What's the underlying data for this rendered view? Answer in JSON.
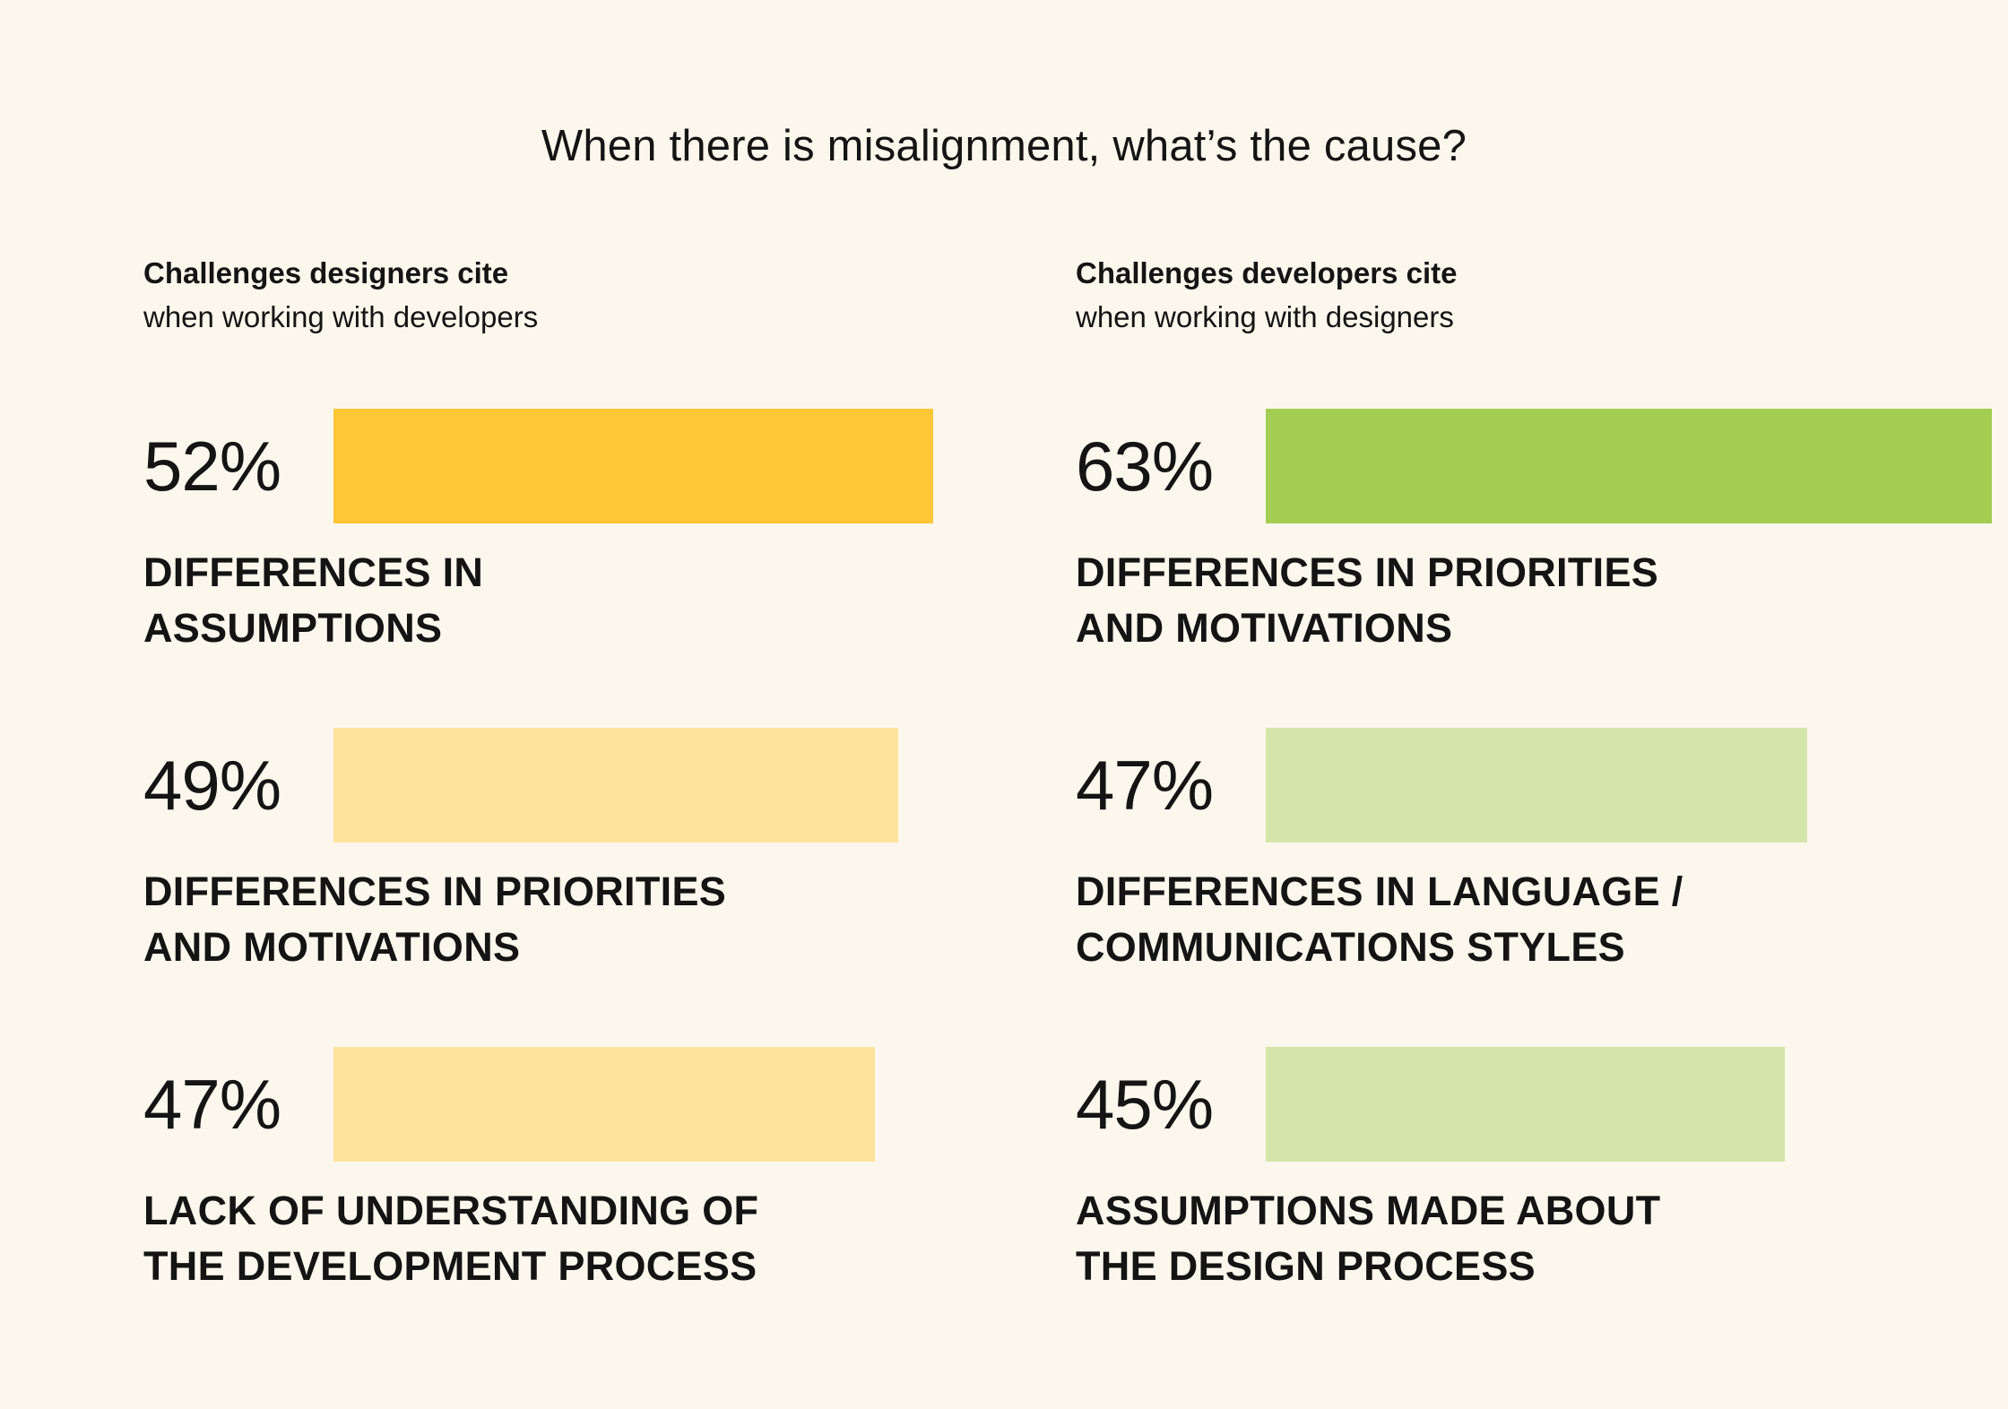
{
  "title": "When there is misalignment, what’s the cause?",
  "colors": {
    "background": "#FBF7ED",
    "designers_top": "#FFC636",
    "designers_other": "#FEE39D",
    "developers_top": "#A3CE52",
    "developers_other": "#D4E6AA",
    "text": "#141414"
  },
  "chart_data": [
    {
      "type": "bar",
      "orientation": "horizontal",
      "title": "Challenges designers cite",
      "subtitle": "when working with developers",
      "xlim": [
        0,
        100
      ],
      "categories": [
        "DIFFERENCES IN ASSUMPTIONS",
        "DIFFERENCES IN PRIORITIES AND MOTIVATIONS",
        "LACK OF UNDERSTANDING OF THE DEVELOPMENT PROCESS"
      ],
      "category_lines": [
        [
          "DIFFERENCES IN",
          "ASSUMPTIONS"
        ],
        [
          "DIFFERENCES IN PRIORITIES",
          "AND MOTIVATIONS"
        ],
        [
          "LACK OF UNDERSTANDING OF",
          "THE DEVELOPMENT PROCESS"
        ]
      ],
      "values": [
        52,
        49,
        47
      ],
      "value_labels": [
        "52%",
        "49%",
        "47%"
      ],
      "bar_colors": [
        "#FFC636",
        "#FEE39D",
        "#FEE39D"
      ]
    },
    {
      "type": "bar",
      "orientation": "horizontal",
      "title": "Challenges developers cite",
      "subtitle": "when working with designers",
      "xlim": [
        0,
        100
      ],
      "categories": [
        "DIFFERENCES IN PRIORITIES AND MOTIVATIONS",
        "DIFFERENCES IN LANGUAGE / COMMUNICATIONS STYLES",
        "ASSUMPTIONS MADE ABOUT THE DESIGN PROCESS"
      ],
      "category_lines": [
        [
          "DIFFERENCES IN PRIORITIES",
          "AND MOTIVATIONS"
        ],
        [
          "DIFFERENCES IN LANGUAGE /",
          "COMMUNICATIONS STYLES"
        ],
        [
          "ASSUMPTIONS MADE ABOUT",
          "THE DESIGN PROCESS"
        ]
      ],
      "values": [
        63,
        47,
        45
      ],
      "value_labels": [
        "63%",
        "47%",
        "45%"
      ],
      "bar_colors": [
        "#A3CE52",
        "#D4E6AA",
        "#D4E6AA"
      ]
    }
  ]
}
